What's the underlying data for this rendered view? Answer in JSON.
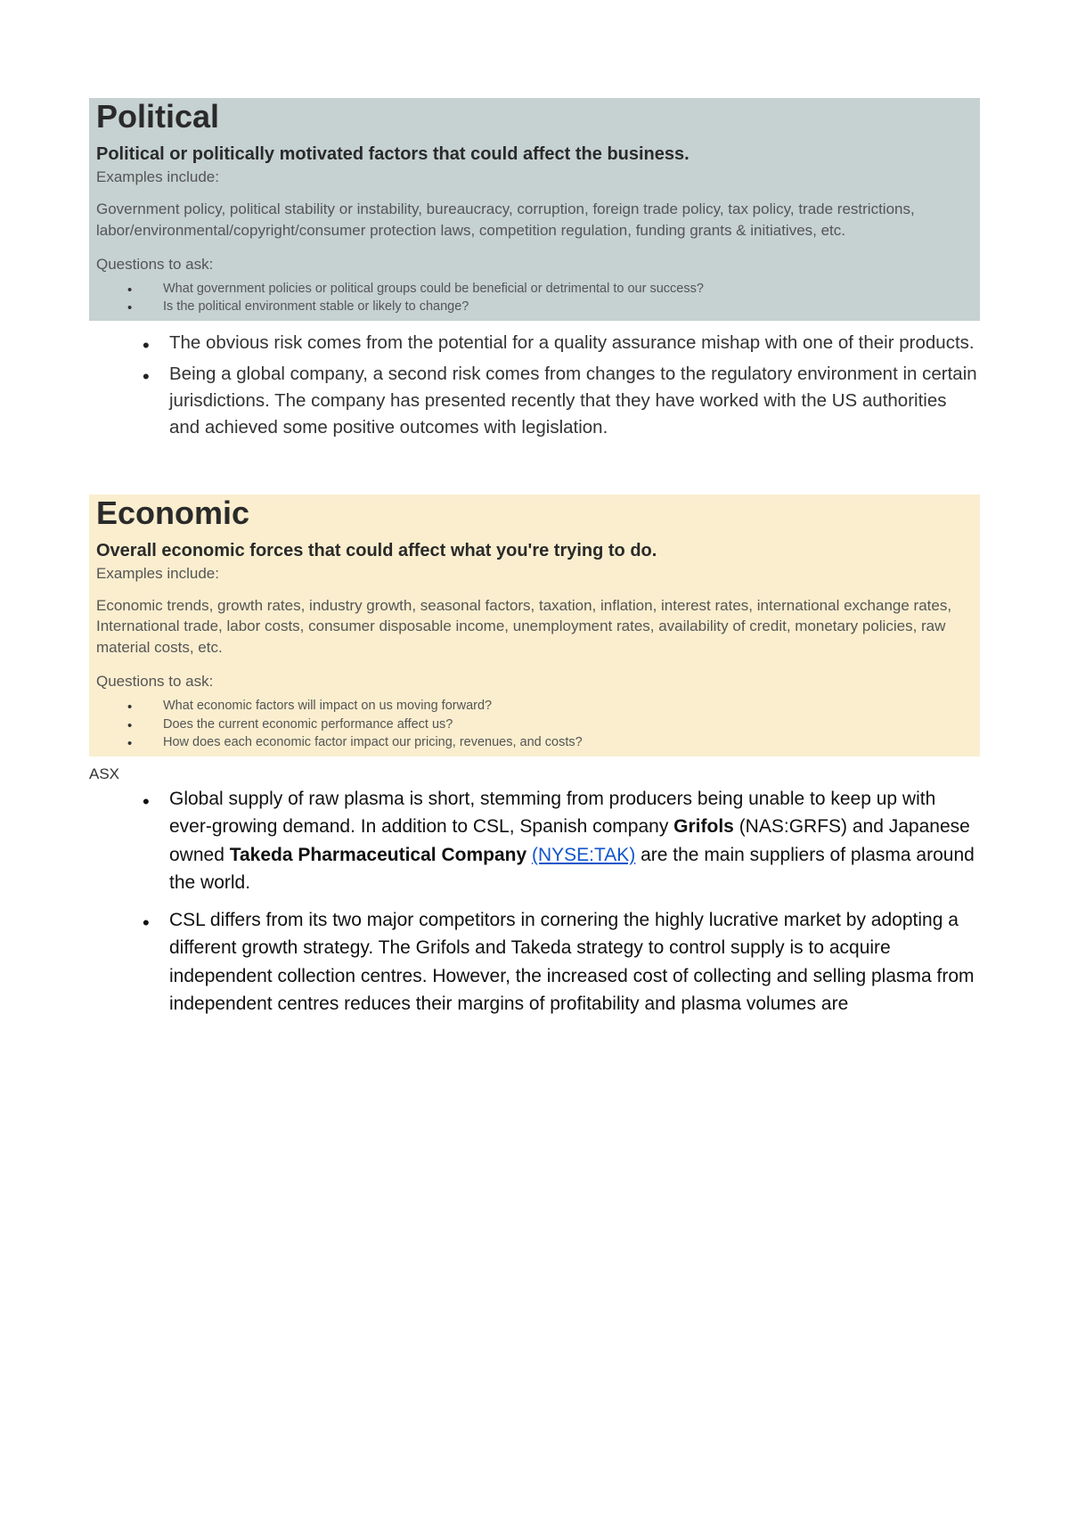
{
  "political": {
    "heading": "Political",
    "subhead": "Political or politically motivated factors that could affect the business.",
    "examples_label": "Examples include:",
    "examples_text": "Government policy, political stability or instability, bureaucracy, corruption, foreign trade policy, tax policy, trade restrictions, labor/environmental/copyright/consumer protection laws, competition regulation, funding grants & initiatives, etc.",
    "questions_label": "Questions to ask:",
    "questions": [
      "What government policies or political groups could be beneficial or detrimental to our success?",
      "Is the political environment stable or likely to change?"
    ],
    "bullets": [
      "The obvious risk comes from the potential for a quality assurance mishap with one of their products.",
      "Being a global company, a second risk comes from changes to the regulatory environment in certain jurisdictions.  The company has presented recently that they have worked with the US authorities and achieved some positive outcomes with legislation."
    ],
    "box_color": "#c6d1d1"
  },
  "economic": {
    "heading": "Economic",
    "subhead": "Overall economic forces that could affect what you're trying to do.",
    "examples_label": "Examples include:",
    "examples_text": "Economic trends, growth rates, industry growth, seasonal factors, taxation, inflation, interest rates, international exchange rates, International trade, labor costs, consumer disposable income, unemployment rates, availability of credit, monetary policies, raw material costs, etc.",
    "questions_label": "Questions to ask:",
    "questions": [
      "What economic factors will impact on us moving forward?",
      "Does the current economic performance affect us?",
      "How does each economic factor impact our pricing, revenues, and costs?"
    ],
    "asx_label": "ASX",
    "bullet1_pre": "Global supply of raw plasma is short, stemming from producers being unable to keep up with ever-growing demand. In addition to CSL, Spanish company ",
    "bullet1_bold1": "Grifols",
    "bullet1_mid1": " (NAS:GRFS) and Japanese owned ",
    "bullet1_bold2": "Takeda Pharmaceutical Company",
    "bullet1_space": " ",
    "bullet1_link": "(NYSE:TAK)",
    "bullet1_post": " are the main suppliers of plasma around the world.",
    "bullet2": "CSL differs from its two major competitors in cornering the highly lucrative market by adopting a different growth strategy. The Grifols and Takeda strategy to control supply is to acquire independent collection centres. However, the increased cost of collecting and selling plasma from independent centres reduces their margins of profitability and plasma volumes are",
    "box_color": "#faeecf",
    "link_color": "#1155cc"
  }
}
